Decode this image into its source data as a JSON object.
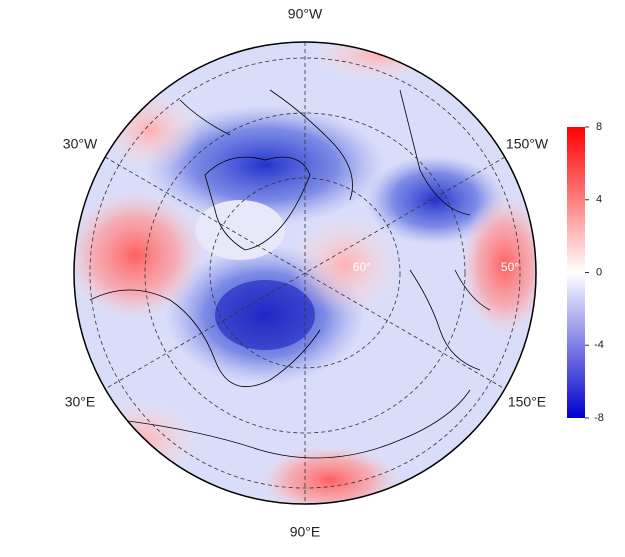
{
  "map": {
    "longitude_labels": [
      "90°W",
      "30°W",
      "150°W",
      "30°E",
      "150°E",
      "90°E"
    ],
    "latitude_labels": [
      "60°",
      "50°"
    ],
    "colorbar": {
      "lim": [
        -8,
        8
      ],
      "ticks": [
        -8,
        -4,
        0,
        4,
        8
      ],
      "colors": [
        "#0000cc",
        "#ffffff",
        "#ff0000"
      ]
    }
  }
}
